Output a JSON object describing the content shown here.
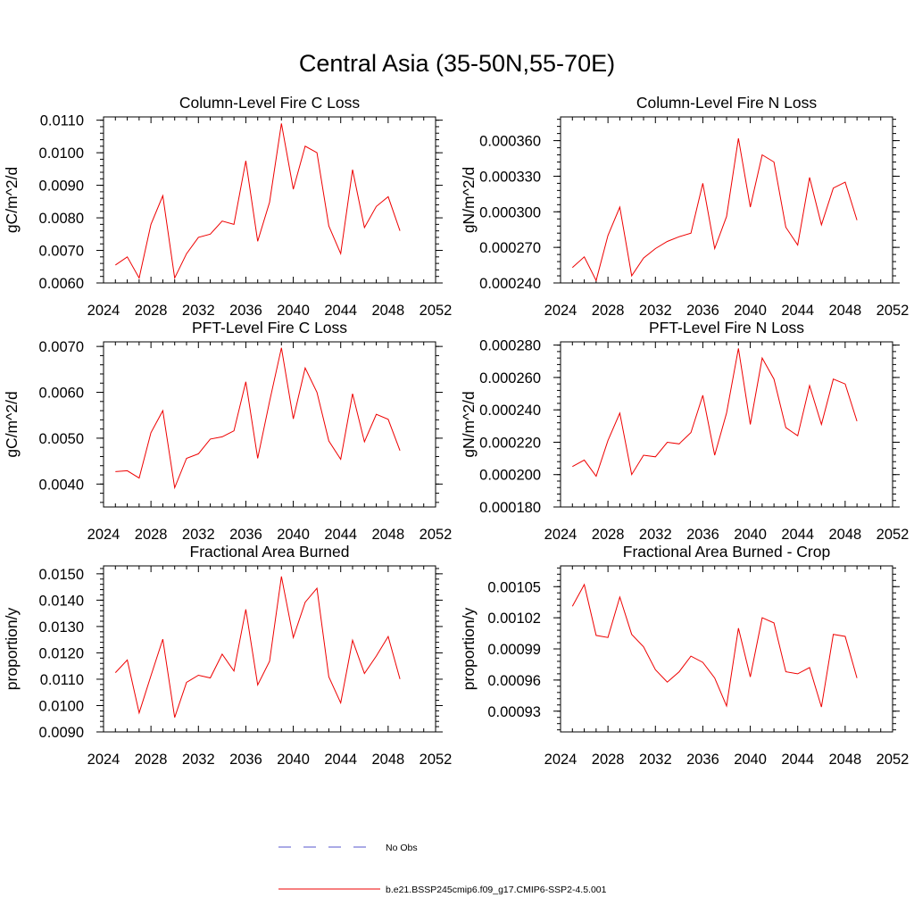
{
  "title": "Central Asia (35-50N,55-70E)",
  "colors": {
    "model": "#ee0000",
    "obs": "#5555cc",
    "axis": "#000000"
  },
  "legend": [
    {
      "label": "No Obs",
      "style": "dashed",
      "color": "#5555cc"
    },
    {
      "label": "b.e21.BSSP245cmip6.f09_g17.CMIP6-SSP2-4.5.001",
      "style": "solid",
      "color": "#ee0000"
    }
  ],
  "chart_data": [
    {
      "type": "line",
      "title": "Column-Level Fire C Loss",
      "ylabel": "gC/m^2/d",
      "xlim": [
        2024,
        2052
      ],
      "xticks": [
        2024,
        2028,
        2032,
        2036,
        2040,
        2044,
        2048,
        2052
      ],
      "ylim": [
        0.006,
        0.0111
      ],
      "yticks": [
        0.006,
        0.007,
        0.008,
        0.009,
        0.01,
        0.011
      ],
      "yticklabels": [
        "0.0060",
        "0.0070",
        "0.0080",
        "0.0090",
        "0.0100",
        "0.0110"
      ],
      "x": [
        2025,
        2026,
        2027,
        2028,
        2029,
        2030,
        2031,
        2032,
        2033,
        2034,
        2035,
        2036,
        2037,
        2038,
        2039,
        2040,
        2041,
        2042,
        2043,
        2044,
        2045,
        2046,
        2047,
        2048,
        2049
      ],
      "series": [
        {
          "values": [
            0.00655,
            0.0068,
            0.00615,
            0.0078,
            0.00868,
            0.00615,
            0.0069,
            0.0074,
            0.0075,
            0.0079,
            0.0078,
            0.00975,
            0.00728,
            0.00848,
            0.0109,
            0.00888,
            0.0102,
            0.01,
            0.00775,
            0.0069,
            0.00948,
            0.0077,
            0.00835,
            0.00865,
            0.0076
          ]
        }
      ]
    },
    {
      "type": "line",
      "title": "Column-Level Fire N Loss",
      "ylabel": "gN/m^2/d",
      "xlim": [
        2024,
        2052
      ],
      "xticks": [
        2024,
        2028,
        2032,
        2036,
        2040,
        2044,
        2048,
        2052
      ],
      "ylim": [
        0.00024,
        0.00038
      ],
      "yticks": [
        0.00024,
        0.00027,
        0.0003,
        0.00033,
        0.00036
      ],
      "yticklabels": [
        "0.000240",
        "0.000270",
        "0.000300",
        "0.000330",
        "0.000360"
      ],
      "x": [
        2025,
        2026,
        2027,
        2028,
        2029,
        2030,
        2031,
        2032,
        2033,
        2034,
        2035,
        2036,
        2037,
        2038,
        2039,
        2040,
        2041,
        2042,
        2043,
        2044,
        2045,
        2046,
        2047,
        2048,
        2049
      ],
      "series": [
        {
          "values": [
            0.000253,
            0.000262,
            0.000242,
            0.00028,
            0.000304,
            0.000246,
            0.000261,
            0.000269,
            0.000275,
            0.000279,
            0.000282,
            0.000324,
            0.000269,
            0.000296,
            0.000362,
            0.000304,
            0.000348,
            0.000342,
            0.000287,
            0.000272,
            0.000329,
            0.000289,
            0.00032,
            0.000325,
            0.000293
          ]
        }
      ]
    },
    {
      "type": "line",
      "title": "PFT-Level Fire C Loss",
      "ylabel": "gC/m^2/d",
      "xlim": [
        2024,
        2052
      ],
      "xticks": [
        2024,
        2028,
        2032,
        2036,
        2040,
        2044,
        2048,
        2052
      ],
      "ylim": [
        0.0035,
        0.0071
      ],
      "yticks": [
        0.004,
        0.005,
        0.006,
        0.007
      ],
      "yticklabels": [
        "0.0040",
        "0.0050",
        "0.0060",
        "0.0070"
      ],
      "x": [
        2025,
        2026,
        2027,
        2028,
        2029,
        2030,
        2031,
        2032,
        2033,
        2034,
        2035,
        2036,
        2037,
        2038,
        2039,
        2040,
        2041,
        2042,
        2043,
        2044,
        2045,
        2046,
        2047,
        2048,
        2049
      ],
      "series": [
        {
          "values": [
            0.00427,
            0.00429,
            0.00413,
            0.00512,
            0.0056,
            0.00392,
            0.00456,
            0.00466,
            0.00498,
            0.00503,
            0.00516,
            0.00623,
            0.00456,
            0.0058,
            0.00697,
            0.00542,
            0.00653,
            0.006,
            0.00494,
            0.00454,
            0.00597,
            0.00492,
            0.00552,
            0.00541,
            0.00473
          ]
        }
      ]
    },
    {
      "type": "line",
      "title": "PFT-Level Fire N Loss",
      "ylabel": "gN/m^2/d",
      "xlim": [
        2024,
        2052
      ],
      "xticks": [
        2024,
        2028,
        2032,
        2036,
        2040,
        2044,
        2048,
        2052
      ],
      "ylim": [
        0.00018,
        0.000282
      ],
      "yticks": [
        0.00018,
        0.0002,
        0.00022,
        0.00024,
        0.00026,
        0.00028
      ],
      "yticklabels": [
        "0.000180",
        "0.000200",
        "0.000220",
        "0.000240",
        "0.000260",
        "0.000280"
      ],
      "x": [
        2025,
        2026,
        2027,
        2028,
        2029,
        2030,
        2031,
        2032,
        2033,
        2034,
        2035,
        2036,
        2037,
        2038,
        2039,
        2040,
        2041,
        2042,
        2043,
        2044,
        2045,
        2046,
        2047,
        2048,
        2049
      ],
      "series": [
        {
          "values": [
            0.000205,
            0.000209,
            0.000199,
            0.000221,
            0.000238,
            0.0002,
            0.000212,
            0.000211,
            0.00022,
            0.000219,
            0.000226,
            0.000249,
            0.000212,
            0.000238,
            0.000278,
            0.000231,
            0.000272,
            0.000259,
            0.000229,
            0.000224,
            0.000255,
            0.000231,
            0.000259,
            0.000256,
            0.000233
          ]
        }
      ]
    },
    {
      "type": "line",
      "title": "Fractional Area Burned",
      "ylabel": "proportion/y",
      "xlim": [
        2024,
        2052
      ],
      "xticks": [
        2024,
        2028,
        2032,
        2036,
        2040,
        2044,
        2048,
        2052
      ],
      "ylim": [
        0.009,
        0.0153
      ],
      "yticks": [
        0.009,
        0.01,
        0.011,
        0.012,
        0.013,
        0.014,
        0.015
      ],
      "yticklabels": [
        "0.0090",
        "0.0100",
        "0.0110",
        "0.0120",
        "0.0130",
        "0.0140",
        "0.0150"
      ],
      "x": [
        2025,
        2026,
        2027,
        2028,
        2029,
        2030,
        2031,
        2032,
        2033,
        2034,
        2035,
        2036,
        2037,
        2038,
        2039,
        2040,
        2041,
        2042,
        2043,
        2044,
        2045,
        2046,
        2047,
        2048,
        2049
      ],
      "series": [
        {
          "values": [
            0.01125,
            0.01173,
            0.00972,
            0.01113,
            0.01252,
            0.00955,
            0.01088,
            0.01115,
            0.01105,
            0.01195,
            0.01131,
            0.01365,
            0.01078,
            0.01168,
            0.0149,
            0.01258,
            0.01392,
            0.01445,
            0.01109,
            0.0101,
            0.01248,
            0.01122,
            0.01188,
            0.01262,
            0.01101
          ]
        }
      ]
    },
    {
      "type": "line",
      "title": "Fractional Area Burned - Crop",
      "ylabel": "proportion/y",
      "xlim": [
        2024,
        2052
      ],
      "xticks": [
        2024,
        2028,
        2032,
        2036,
        2040,
        2044,
        2048,
        2052
      ],
      "ylim": [
        0.00091,
        0.00107
      ],
      "yticks": [
        0.00093,
        0.00096,
        0.00099,
        0.00102,
        0.00105
      ],
      "yticklabels": [
        "0.00093",
        "0.00096",
        "0.00099",
        "0.00102",
        "0.00105"
      ],
      "x": [
        2025,
        2026,
        2027,
        2028,
        2029,
        2030,
        2031,
        2032,
        2033,
        2034,
        2035,
        2036,
        2037,
        2038,
        2039,
        2040,
        2041,
        2042,
        2043,
        2044,
        2045,
        2046,
        2047,
        2048,
        2049
      ],
      "series": [
        {
          "values": [
            0.001031,
            0.001052,
            0.001003,
            0.001001,
            0.00104,
            0.001004,
            0.000992,
            0.00097,
            0.000958,
            0.000968,
            0.000983,
            0.000977,
            0.000962,
            0.000935,
            0.00101,
            0.000963,
            0.00102,
            0.001015,
            0.000968,
            0.000966,
            0.000972,
            0.000934,
            0.001004,
            0.001002,
            0.000962
          ]
        }
      ]
    }
  ]
}
